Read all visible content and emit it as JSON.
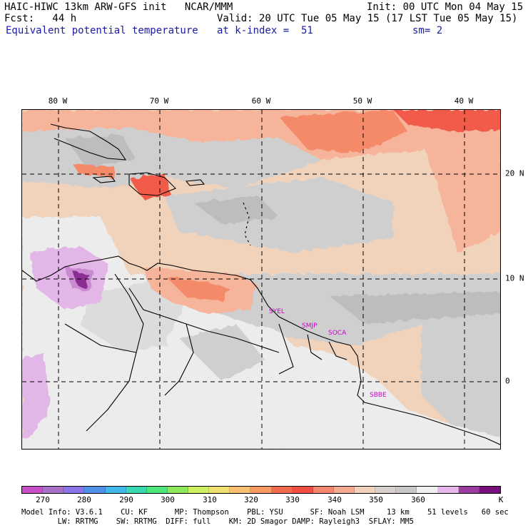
{
  "header": {
    "model_line": "HAIC-HIWC 13km ARW-GFS init   NCAR/MMM",
    "init_line": "Init: 00 UTC Mon 04 May 15",
    "fcst_line": "Fcst:   44 h",
    "valid_line": "Valid: 20 UTC Tue 05 May 15 (17 LST Tue 05 May 15)",
    "field_name": "Equivalent potential temperature",
    "level_line": "at k-index =  51",
    "smooth_line": "sm= 2"
  },
  "map": {
    "lon_labels": [
      "80 W",
      "70 W",
      "60 W",
      "50 W",
      "40 W"
    ],
    "lat_labels": [
      "20 N",
      "10 N",
      "0"
    ],
    "stations": [
      "SYEL",
      "SMJP",
      "SOCA",
      "SBBE"
    ],
    "colors": {
      "land_light": "#ececec",
      "gray_mid": "#cfcfcf",
      "gray_dark": "#bdbdbd",
      "tan": "#f1d2bb",
      "salmon": "#f6b49a",
      "orange_red": "#f48a6a",
      "red": "#f25a4a",
      "lavender": "#e2b6e6",
      "purple": "#c98ad2",
      "dark_purple": "#8a2f92"
    }
  },
  "colorbar": {
    "colors": [
      "#c94fc8",
      "#a872c8",
      "#8a74e8",
      "#4f90e8",
      "#40b8e8",
      "#38d8b0",
      "#4ee87a",
      "#8fe85a",
      "#cff060",
      "#f0e070",
      "#f8c070",
      "#f89a60",
      "#f56a4e",
      "#f24e44",
      "#f6876e",
      "#f5ab92",
      "#f1d2bb",
      "#d8d0cc",
      "#c8c8c8",
      "#f0f0f0",
      "#e6b8ec",
      "#9a3ca0",
      "#7a0f7e"
    ],
    "labels": [
      "270",
      "280",
      "290",
      "300",
      "310",
      "320",
      "330",
      "340",
      "350",
      "360",
      "K"
    ]
  },
  "footer": {
    "line1": "Model Info: V3.6.1    CU: KF      MP: Thompson    PBL: YSU      SF: Noah LSM     13 km    51 levels   60 sec",
    "line2": "        LW: RRTMG    SW: RRTMG  DIFF: full    KM: 2D Smagor DAMP: Rayleigh3  SFLAY: MM5"
  }
}
